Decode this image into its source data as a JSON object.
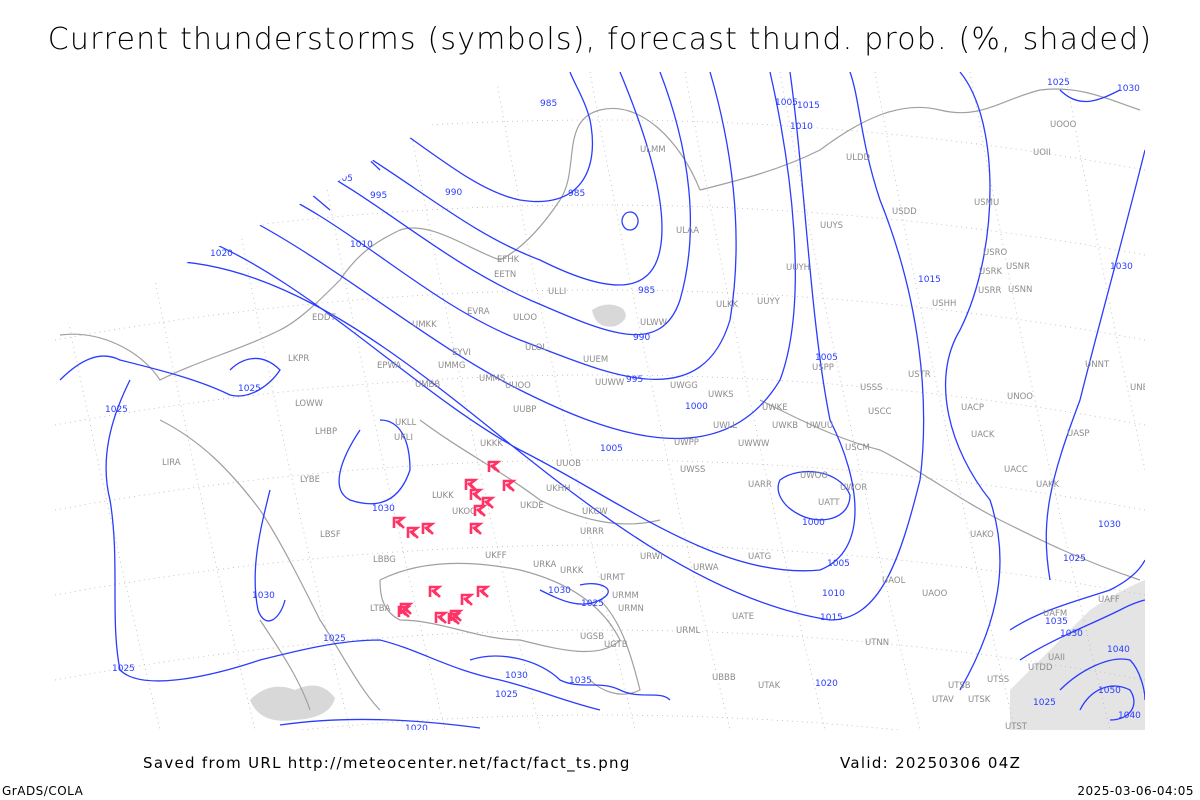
{
  "title": "Current thunderstorms (symbols), forecast thund. prob. (%, shaded)",
  "footer": {
    "source": "Saved from URL http://meteocenter.net/fact/fact_ts.png",
    "valid": "Valid: 20250306 04Z",
    "software": "GrADS/COLA",
    "timestamp": "2025-03-06-04:05"
  },
  "colors": {
    "isobars": "#2a3cff",
    "coastlines": "#a0a0a0",
    "thunderstorm_symbol": "#ff3366",
    "probability_shading": "#d8d8d8"
  },
  "symbols": {
    "thunderstorm": "thunderstorm-R-icon"
  },
  "isobar_labels": [
    "985",
    "1005",
    "1015",
    "1010",
    "1000",
    "1005",
    "995",
    "990",
    "985",
    "1010",
    "1020",
    "985",
    "990",
    "995",
    "1000",
    "1005",
    "1005",
    "1015",
    "1025",
    "1030",
    "1030",
    "1025",
    "1025",
    "1030",
    "1030",
    "1000",
    "1005",
    "1010",
    "1015",
    "1020",
    "1030",
    "1025",
    "1030",
    "1025",
    "1025",
    "1025",
    "1030",
    "1035",
    "1025",
    "1020",
    "1035",
    "1030",
    "1040",
    "1050",
    "1040",
    "1025"
  ],
  "station_labels": [
    "ULMM",
    "ULAA",
    "ULLI",
    "ULOO",
    "ULWW",
    "ULOL",
    "UUEM",
    "UUWW",
    "UUOO",
    "UUBP",
    "EFHK",
    "EETN",
    "EVRA",
    "EYVI",
    "UMMG",
    "UMMS",
    "UMKK",
    "EPWA",
    "UMBB",
    "EDDT",
    "LKPR",
    "LOWW",
    "LHBP",
    "LIRA",
    "LYBE",
    "LBSF",
    "UKLL",
    "UKLI",
    "UKKK",
    "UUOB",
    "UKHH",
    "UKDE",
    "UKOO",
    "LUKK",
    "UKFF",
    "LBBG",
    "URKA",
    "URKK",
    "URRR",
    "UKCW",
    "LTBA",
    "UGSB",
    "UGTB",
    "UBBB",
    "UTAK",
    "URMT",
    "URMM",
    "URMN",
    "URML",
    "UATE",
    "UATG",
    "URWA",
    "URWI",
    "UWWW",
    "UWKE",
    "UWKB",
    "UWUU",
    "UWPP",
    "UWGG",
    "UWKS",
    "UWLL",
    "UWSS",
    "UARR",
    "UATT",
    "UWOO",
    "UWOR",
    "USCM",
    "USCC",
    "USSS",
    "USPP",
    "UUYY",
    "ULKK",
    "UUYH",
    "UUYS",
    "USTR",
    "USHH",
    "USRR",
    "USRK",
    "USNR",
    "USNN",
    "USRO",
    "USMU",
    "UOOO",
    "UOII",
    "USDD",
    "ULDD",
    "UNNT",
    "UNBB",
    "UNOO",
    "UACP",
    "UACK",
    "UASP",
    "UACC",
    "UAKK",
    "UAKO",
    "UAOL",
    "UAOO",
    "UTNN",
    "UTSS",
    "UTSB",
    "UTAV",
    "UTSK",
    "UTST",
    "UAII",
    "UTDD",
    "UAFF",
    "UAFM"
  ]
}
